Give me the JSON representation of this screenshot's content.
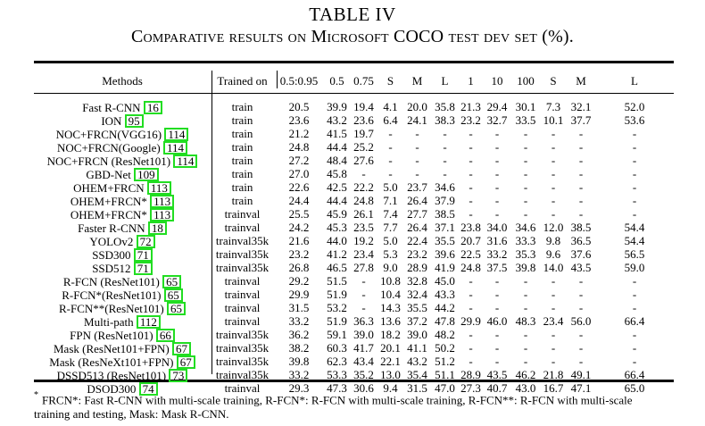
{
  "caption": {
    "number": "TABLE IV",
    "title": "Comparative results on Microsoft COCO test dev set (%)."
  },
  "columns": [
    "Methods",
    "Trained on",
    "0.5:0.95",
    "0.5",
    "0.75",
    "S",
    "M",
    "L",
    "1",
    "10",
    "100",
    "S",
    "M",
    "L"
  ],
  "rows": [
    {
      "method": "Fast R-CNN",
      "cite": "16",
      "trained": "train",
      "v": [
        "20.5",
        "39.9",
        "19.4",
        "4.1",
        "20.0",
        "35.8",
        "21.3",
        "29.4",
        "30.1",
        "7.3",
        "32.1",
        "52.0"
      ]
    },
    {
      "method": "ION",
      "cite": "95",
      "trained": "train",
      "v": [
        "23.6",
        "43.2",
        "23.6",
        "6.4",
        "24.1",
        "38.3",
        "23.2",
        "32.7",
        "33.5",
        "10.1",
        "37.7",
        "53.6"
      ]
    },
    {
      "method": "NOC+FRCN(VGG16)",
      "cite": "114",
      "trained": "train",
      "v": [
        "21.2",
        "41.5",
        "19.7",
        "-",
        "-",
        "-",
        "-",
        "-",
        "-",
        "-",
        "-",
        "-"
      ]
    },
    {
      "method": "NOC+FRCN(Google)",
      "cite": "114",
      "trained": "train",
      "v": [
        "24.8",
        "44.4",
        "25.2",
        "-",
        "-",
        "-",
        "-",
        "-",
        "-",
        "-",
        "-",
        "-"
      ]
    },
    {
      "method": "NOC+FRCN (ResNet101)",
      "cite": "114",
      "trained": "train",
      "v": [
        "27.2",
        "48.4",
        "27.6",
        "-",
        "-",
        "-",
        "-",
        "-",
        "-",
        "-",
        "-",
        "-"
      ]
    },
    {
      "method": "GBD-Net",
      "cite": "109",
      "trained": "train",
      "v": [
        "27.0",
        "45.8",
        "-",
        "-",
        "-",
        "-",
        "-",
        "-",
        "-",
        "-",
        "-",
        "-"
      ]
    },
    {
      "method": "OHEM+FRCN",
      "cite": "113",
      "trained": "train",
      "v": [
        "22.6",
        "42.5",
        "22.2",
        "5.0",
        "23.7",
        "34.6",
        "-",
        "-",
        "-",
        "-",
        "-",
        "-"
      ]
    },
    {
      "method": "OHEM+FRCN*",
      "cite": "113",
      "trained": "train",
      "v": [
        "24.4",
        "44.4",
        "24.8",
        "7.1",
        "26.4",
        "37.9",
        "-",
        "-",
        "-",
        "-",
        "-",
        "-"
      ]
    },
    {
      "method": "OHEM+FRCN*",
      "cite": "113",
      "trained": "trainval",
      "v": [
        "25.5",
        "45.9",
        "26.1",
        "7.4",
        "27.7",
        "38.5",
        "-",
        "-",
        "-",
        "-",
        "-",
        "-"
      ]
    },
    {
      "method": "Faster R-CNN",
      "cite": "18",
      "trained": "trainval",
      "v": [
        "24.2",
        "45.3",
        "23.5",
        "7.7",
        "26.4",
        "37.1",
        "23.8",
        "34.0",
        "34.6",
        "12.0",
        "38.5",
        "54.4"
      ]
    },
    {
      "method": "YOLOv2",
      "cite": "72",
      "trained": "trainval35k",
      "v": [
        "21.6",
        "44.0",
        "19.2",
        "5.0",
        "22.4",
        "35.5",
        "20.7",
        "31.6",
        "33.3",
        "9.8",
        "36.5",
        "54.4"
      ]
    },
    {
      "method": "SSD300",
      "cite": "71",
      "trained": "trainval35k",
      "v": [
        "23.2",
        "41.2",
        "23.4",
        "5.3",
        "23.2",
        "39.6",
        "22.5",
        "33.2",
        "35.3",
        "9.6",
        "37.6",
        "56.5"
      ]
    },
    {
      "method": "SSD512",
      "cite": "71",
      "trained": "trainval35k",
      "v": [
        "26.8",
        "46.5",
        "27.8",
        "9.0",
        "28.9",
        "41.9",
        "24.8",
        "37.5",
        "39.8",
        "14.0",
        "43.5",
        "59.0"
      ]
    },
    {
      "method": "R-FCN (ResNet101)",
      "cite": "65",
      "trained": "trainval",
      "v": [
        "29.2",
        "51.5",
        "-",
        "10.8",
        "32.8",
        "45.0",
        "-",
        "-",
        "-",
        "-",
        "-",
        "-"
      ]
    },
    {
      "method": "R-FCN*(ResNet101)",
      "cite": "65",
      "trained": "trainval",
      "v": [
        "29.9",
        "51.9",
        "-",
        "10.4",
        "32.4",
        "43.3",
        "-",
        "-",
        "-",
        "-",
        "-",
        "-"
      ]
    },
    {
      "method": "R-FCN**(ResNet101)",
      "cite": "65",
      "trained": "trainval",
      "v": [
        "31.5",
        "53.2",
        "-",
        "14.3",
        "35.5",
        "44.2",
        "-",
        "-",
        "-",
        "-",
        "-",
        "-"
      ]
    },
    {
      "method": "Multi-path",
      "cite": "112",
      "trained": "trainval",
      "v": [
        "33.2",
        "51.9",
        "36.3",
        "13.6",
        "37.2",
        "47.8",
        "29.9",
        "46.0",
        "48.3",
        "23.4",
        "56.0",
        "66.4"
      ]
    },
    {
      "method": "FPN (ResNet101)",
      "cite": "66",
      "trained": "trainval35k",
      "v": [
        "36.2",
        "59.1",
        "39.0",
        "18.2",
        "39.0",
        "48.2",
        "-",
        "-",
        "-",
        "-",
        "-",
        "-"
      ]
    },
    {
      "method": "Mask (ResNet101+FPN)",
      "cite": "67",
      "trained": "trainval35k",
      "v": [
        "38.2",
        "60.3",
        "41.7",
        "20.1",
        "41.1",
        "50.2",
        "-",
        "-",
        "-",
        "-",
        "-",
        "-"
      ]
    },
    {
      "method": "Mask (ResNeXt101+FPN)",
      "cite": "67",
      "trained": "trainval35k",
      "bold_upto": 6,
      "v": [
        "39.8",
        "62.3",
        "43.4",
        "22.1",
        "43.2",
        "51.2",
        "-",
        "-",
        "-",
        "-",
        "-",
        "-"
      ]
    },
    {
      "method": "DSSD513 (ResNet101)",
      "cite": "73",
      "trained": "trainval35k",
      "v": [
        "33.2",
        "53.3",
        "35.2",
        "13.0",
        "35.4",
        "51.1",
        "28.9",
        "43.5",
        "46.2",
        "21.8",
        "49.1",
        "66.4"
      ]
    },
    {
      "method": "DSOD300",
      "cite": "74",
      "trained": "trainval",
      "v": [
        "29.3",
        "47.3",
        "30.6",
        "9.4",
        "31.5",
        "47.0",
        "27.3",
        "40.7",
        "43.0",
        "16.7",
        "47.1",
        "65.0"
      ]
    }
  ],
  "footnote": {
    "mark": "*",
    "text": "FRCN*: Fast R-CNN with multi-scale training, R-FCN*: R-FCN with multi-scale training, R-FCN**: R-FCN with multi-scale training and testing, Mask: Mask R-CNN."
  }
}
